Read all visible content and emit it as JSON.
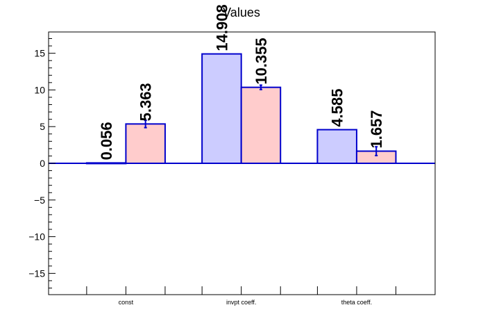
{
  "chart_data": {
    "type": "bar",
    "title": "Values",
    "categories": [
      "const",
      "invpt coeff.",
      "theta coeff."
    ],
    "series": [
      {
        "values": [
          0.056,
          14.908,
          4.585
        ],
        "errors": [
          0,
          0,
          0
        ],
        "color": "#ccccff",
        "edge": "#0000cc"
      },
      {
        "values": [
          5.363,
          10.355,
          1.657
        ],
        "errors": [
          0.5,
          0.3,
          0.6
        ],
        "color": "#ffcccc",
        "edge": "#0000cc"
      }
    ],
    "data_labels": [
      [
        "0.056",
        "14.908",
        "4.585"
      ],
      [
        "5.363",
        "10.355",
        "1.657"
      ]
    ],
    "ylim": [
      -17.9,
      17.9
    ],
    "yticks": [
      -15,
      -10,
      -5,
      0,
      5,
      10,
      15
    ],
    "ytick_labels": [
      "−15",
      "−10",
      "−5",
      "0",
      "5",
      "10",
      "15"
    ],
    "grid": false,
    "legend": "none",
    "xlabel": "",
    "ylabel": ""
  }
}
